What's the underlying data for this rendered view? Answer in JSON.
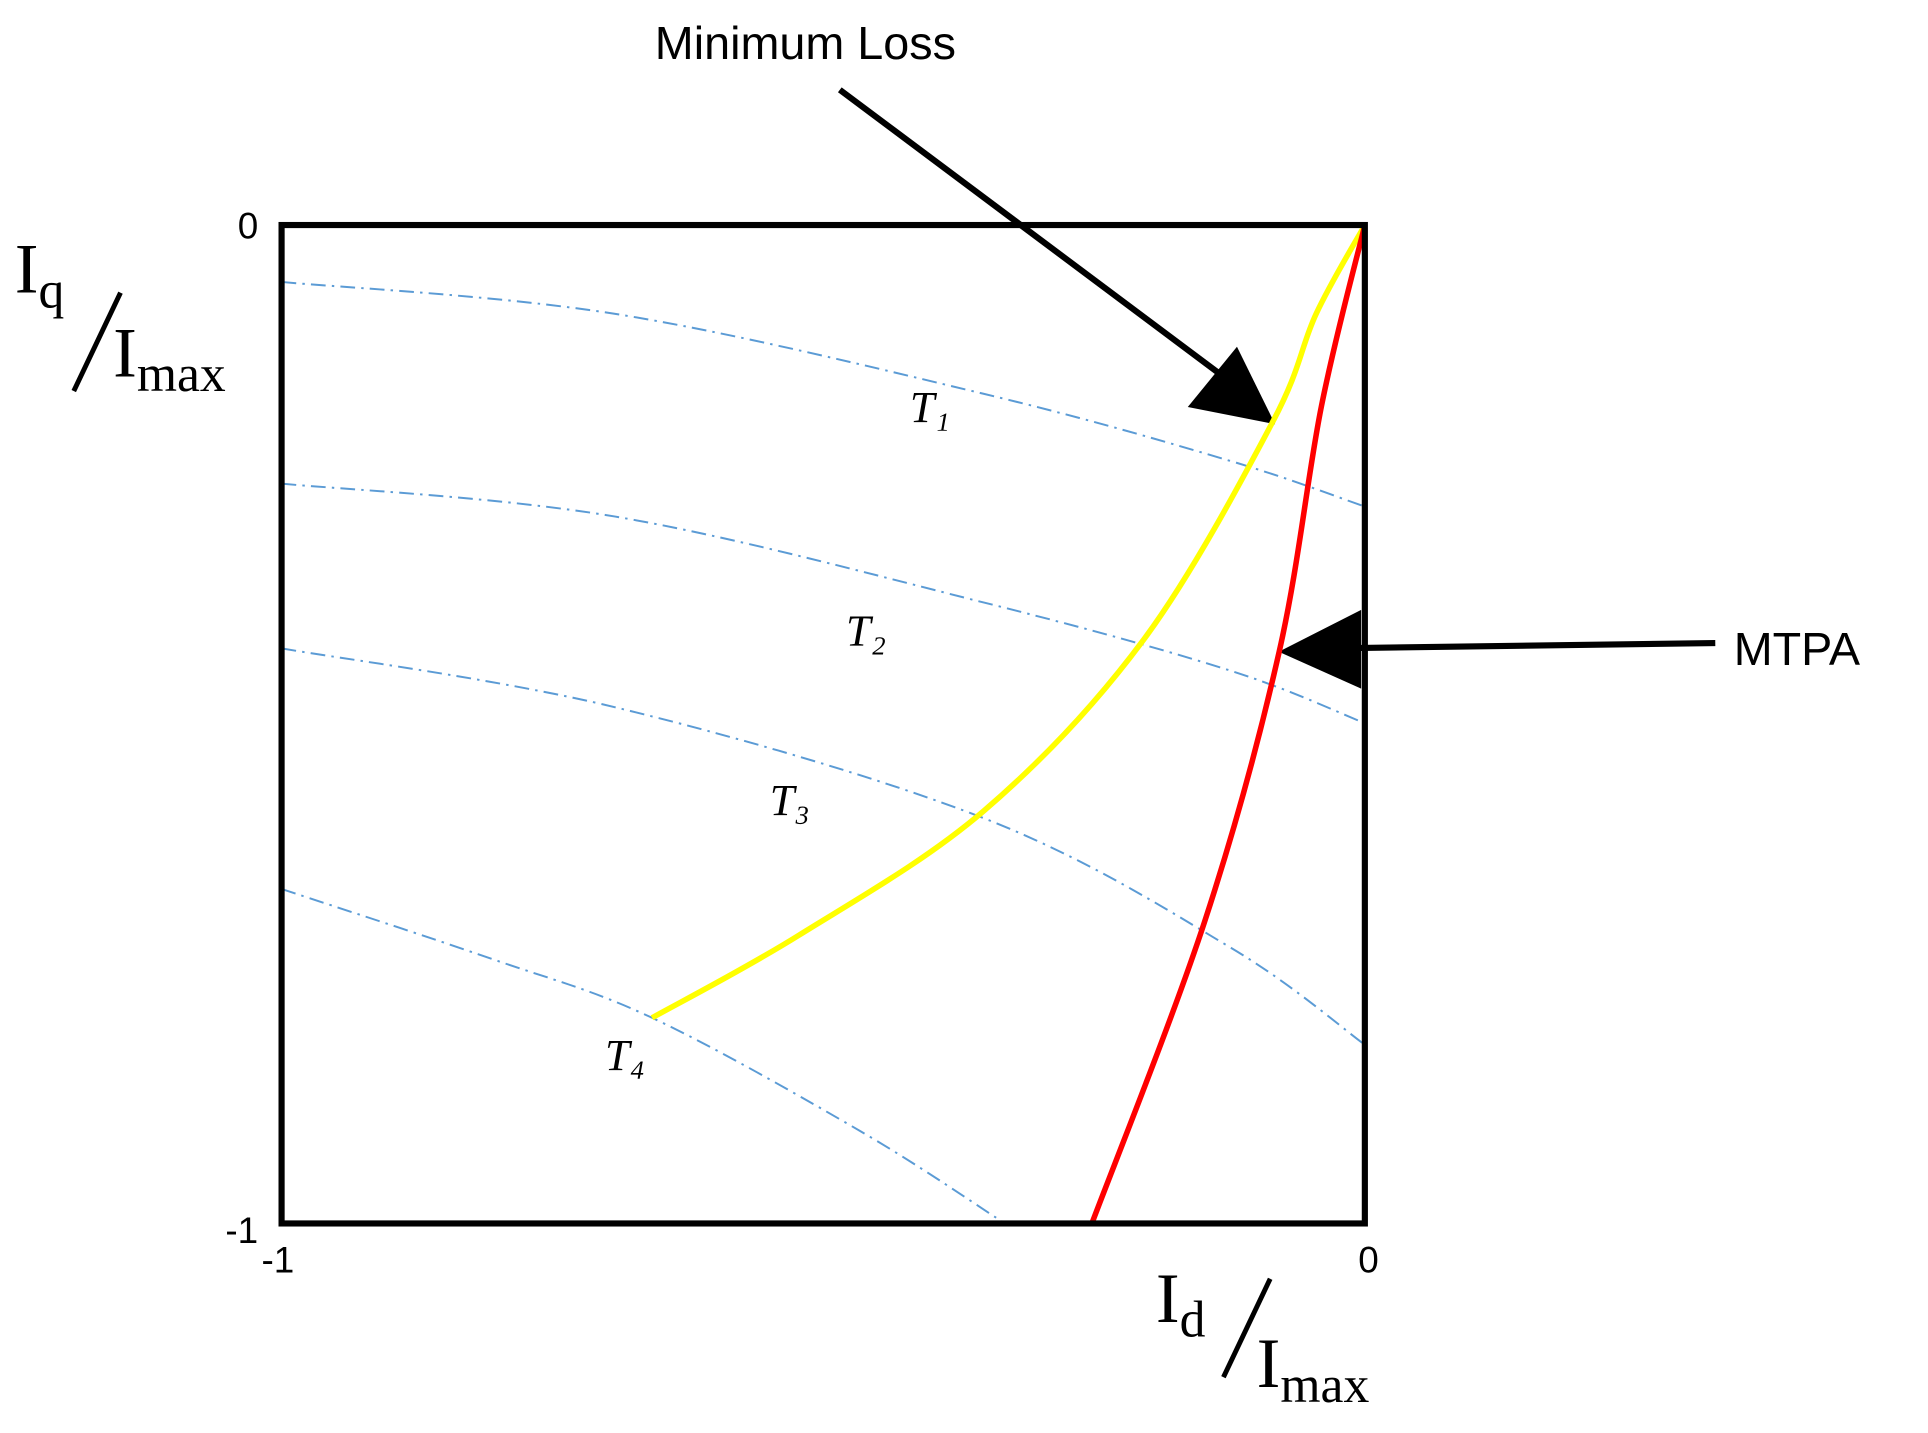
{
  "chart_data": {
    "type": "line",
    "xlim": [
      -1,
      0
    ],
    "ylim": [
      -1,
      0
    ],
    "xticks": [
      -1,
      0
    ],
    "yticks": [
      -1,
      0
    ],
    "grid": false,
    "xlabel": {
      "numerator": "I",
      "numerator_sub": "d",
      "denominator": "I",
      "denominator_sub": "max"
    },
    "ylabel": {
      "numerator": "I",
      "numerator_sub": "q",
      "denominator": "I",
      "denominator_sub": "max"
    },
    "series": [
      {
        "name": "T₁",
        "color": "#5b9bd5",
        "style": "dash-dot",
        "x": [
          -1,
          -0.692,
          -0.352,
          -0.125,
          0
        ],
        "values": [
          -0.057,
          -0.089,
          -0.169,
          -0.236,
          -0.282
        ]
      },
      {
        "name": "T₂",
        "color": "#5b9bd5",
        "style": "dash-dot",
        "x": [
          -1,
          -0.692,
          -0.352,
          -0.125,
          0
        ],
        "values": [
          -0.259,
          -0.292,
          -0.378,
          -0.446,
          -0.499
        ]
      },
      {
        "name": "T₃",
        "color": "#5b9bd5",
        "style": "dash-dot",
        "x": [
          -1,
          -0.692,
          -0.352,
          -0.125,
          0
        ],
        "values": [
          -0.424,
          -0.483,
          -0.594,
          -0.723,
          -0.821
        ]
      },
      {
        "name": "T₄",
        "color": "#5b9bd5",
        "style": "dash-dot",
        "x": [
          -1,
          -0.806,
          -0.658,
          -0.465,
          -0.335
        ],
        "values": [
          -0.665,
          -0.735,
          -0.794,
          -0.908,
          -0.998
        ]
      },
      {
        "name": "Minimum Loss",
        "color": "#ffff00",
        "style": "solid",
        "x": [
          0,
          -0.045,
          -0.085,
          -0.204,
          -0.352,
          -0.522,
          -0.658
        ],
        "values": [
          0,
          -0.089,
          -0.197,
          -0.415,
          -0.587,
          -0.711,
          -0.794
        ]
      },
      {
        "name": "MTPA",
        "color": "#ff0000",
        "style": "solid",
        "x": [
          0,
          -0.04,
          -0.079,
          -0.148,
          -0.252
        ],
        "values": [
          0,
          -0.181,
          -0.427,
          -0.698,
          -1.0
        ]
      }
    ]
  }
}
